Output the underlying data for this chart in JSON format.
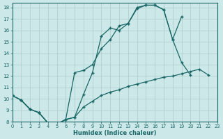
{
  "xlabel": "Humidex (Indice chaleur)",
  "bg_color": "#cce8e8",
  "grid_color": "#aacccc",
  "line_color": "#1a6666",
  "xlim": [
    0,
    23
  ],
  "ylim": [
    8,
    18.4
  ],
  "xticks": [
    0,
    1,
    2,
    3,
    4,
    5,
    6,
    7,
    8,
    9,
    10,
    11,
    12,
    13,
    14,
    15,
    16,
    17,
    18,
    19,
    20,
    21,
    22,
    23
  ],
  "yticks": [
    8,
    9,
    10,
    11,
    12,
    13,
    14,
    15,
    16,
    17,
    18
  ],
  "line1_x": [
    0,
    1,
    2,
    3,
    4,
    5,
    6,
    7,
    8,
    9,
    10,
    11,
    12,
    13,
    14,
    15,
    16,
    17,
    18,
    19,
    20
  ],
  "line1_y": [
    10.3,
    9.9,
    9.1,
    8.8,
    7.9,
    7.8,
    8.2,
    8.4,
    10.4,
    12.3,
    15.5,
    16.2,
    16.0,
    16.6,
    18.0,
    18.2,
    18.2,
    17.8,
    15.2,
    13.2,
    12.1
  ],
  "line2_x": [
    0,
    1,
    2,
    3,
    4,
    5,
    6,
    7,
    8,
    9,
    10,
    11,
    12,
    13,
    14,
    15,
    16,
    17,
    18,
    19
  ],
  "line2_y": [
    10.3,
    9.9,
    9.1,
    8.8,
    7.9,
    7.8,
    8.2,
    12.3,
    12.5,
    13.0,
    14.4,
    15.2,
    16.4,
    16.6,
    17.9,
    18.2,
    18.2,
    17.8,
    15.2,
    17.2
  ],
  "line3_x": [
    0,
    1,
    2,
    3,
    4,
    5,
    6,
    7,
    8,
    9,
    10,
    11,
    12,
    13,
    14,
    15,
    16,
    17,
    18,
    19,
    20,
    21,
    22
  ],
  "line3_y": [
    10.3,
    9.9,
    9.1,
    8.8,
    7.9,
    7.8,
    8.2,
    8.4,
    9.3,
    9.8,
    10.3,
    10.6,
    10.8,
    11.1,
    11.3,
    11.5,
    11.7,
    11.9,
    12.0,
    12.2,
    12.4,
    12.6,
    12.1
  ]
}
